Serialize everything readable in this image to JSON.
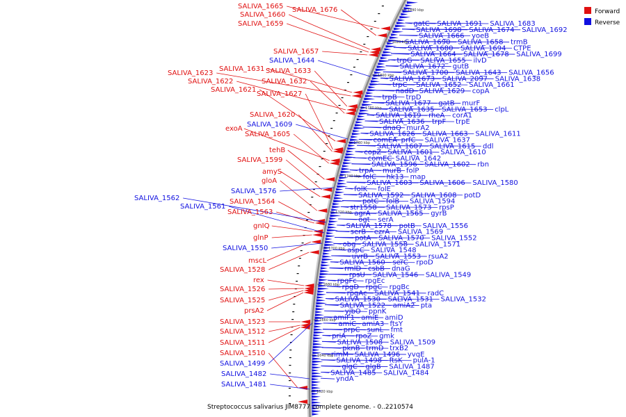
{
  "caption": "Streptococcus salivarius JIM8777 complete genome. - 0..2210574",
  "legend": [
    {
      "label": "Forward",
      "color": "#e01010"
    },
    {
      "label": "Reverse",
      "color": "#1010e0"
    }
  ],
  "colors": {
    "forward": "#e01010",
    "reverse": "#1010e0",
    "backbone": "#888888"
  },
  "ticks": [
    "1620 kbp",
    "1640 kbp",
    "1660 kbp",
    "1680 kbp",
    "1700 kbp",
    "1720 kbp",
    "1740 kbp",
    "1760 kbp",
    "1780 kbp",
    "1800 kbp",
    "1820 kbp",
    "1840 kbp"
  ],
  "forward_labels": [
    "SALIVA_1665",
    "SALIVA_1676",
    "SALIVA_1660",
    "SALIVA_1659",
    "SALIVA_1657",
    "SALIVA_1631",
    "SALIVA_1623",
    "SALIVA_1633",
    "SALIVA_1622",
    "SALIVA_1632",
    "SALIVA_1621",
    "SALIVA_1627",
    "SALIVA_1620",
    "exoA",
    "SALIVA_1605",
    "tehB",
    "SALIVA_1599",
    "amyS",
    "gloA",
    "SALIVA_1564",
    "SALIVA_1563",
    "gnIQ",
    "glnP",
    "mscL",
    "SALIVA_1528",
    "rex",
    "SALIVA_1526",
    "SALIVA_1525",
    "prsA2",
    "SALIVA_1523",
    "SALIVA_1512",
    "SALIVA_1511",
    "SALIVA_1510"
  ],
  "reverse_left_labels": [
    "SALIVA_1644",
    "SALIVA_1609",
    "SALIVA_1576",
    "SALIVA_1562",
    "SALIVA_1561",
    "SALIVA_1550",
    "SALIVA_1499",
    "SALIVA_1482",
    "SALIVA_1481"
  ],
  "reverse_right_labels": [
    "gatC",
    "SALIVA_1691",
    "SALIVA_1683",
    "SALIVA_1698",
    "SALIVA_1674",
    "SALIVA_1692",
    "SALIVA_1666",
    "yoeB",
    "SALIVA_1690",
    "SALIVA_1658",
    "trmB",
    "SALIVA_1680",
    "SALIVA_1694",
    "CTPE",
    "SALIVA_1664",
    "SALIVA_1678",
    "SALIVA_1699",
    "trpG",
    "SALIVA_1655",
    "ilvD",
    "SALIVA_1672",
    "gutB",
    "SALIVA_1700",
    "SALIVA_1643",
    "SALIVA_1656",
    "SALIVA_1673",
    "SALIVA_2097",
    "SALIVA_1638",
    "trpC",
    "SALIVA_1652",
    "SALIVA_1661",
    "nadD",
    "SALIVA_1629",
    "copA",
    "trpB",
    "trpD",
    "SALIVA_1677",
    "gatB",
    "murF",
    "SALIVA_1635",
    "SALIVA_1653",
    "clpL",
    "SALIVA_1619",
    "rheA",
    "corA1",
    "SALIVA_1636",
    "trpF",
    "trpE",
    "dnaQ",
    "murA2",
    "SALIVA_1626",
    "SALIVA_1663",
    "SALIVA_1611",
    "comEA",
    "prfC",
    "SALIVA_1637",
    "SALIVA_1607",
    "SALIVA_1615",
    "ddl",
    "copZ",
    "SALIVA_1601",
    "SALIVA_1610",
    "comEC",
    "SALIVA_1642",
    "SALIVA_1596",
    "SALIVA_1602",
    "rbn",
    "trpA",
    "murB",
    "folP",
    "folC",
    "hk13",
    "map",
    "SALIVA_1603",
    "SALIVA_1606",
    "SALIVA_1580",
    "folK",
    "folE",
    "SALIVA_1592",
    "SALIVA_1608",
    "potD",
    "potC",
    "folB",
    "SALIVA_1594",
    "str1558",
    "SALIVA_1573",
    "rpsP",
    "agrA",
    "SALIVA_1565",
    "gyrB",
    "ogt",
    "serA",
    "SALIVA_1578",
    "potB",
    "SALIVA_1556",
    "serB",
    "ezrA",
    "SALIVA_1569",
    "potA",
    "SALIVA_1570",
    "SALIVA_1552",
    "obg",
    "SALIVA_1558",
    "SALIVA_1571",
    "aspC",
    "SALIVA_1548",
    "uvrB",
    "SALIVA_1553",
    "rsuA2",
    "SALIVA_1560",
    "serC",
    "rpoD",
    "rmlD",
    "csbB",
    "dnaG",
    "rpsU",
    "SALIVA_1546",
    "SALIVA_1549",
    "rpgFc",
    "rpgEc",
    "rpgD",
    "rpgC",
    "rpgBc",
    "rpgAc",
    "SALIVA_1541",
    "radC",
    "SALIVA_1530",
    "SALIVA_1531",
    "SALIVA_1532",
    "SALIVA_1522",
    "amiA2",
    "pta",
    "yjbO",
    "ppnK",
    "amiF1",
    "amiE",
    "amiD",
    "amiC",
    "amiA3",
    "ftsY",
    "prpC",
    "sunL",
    "fmt",
    "priA",
    "rpoZ",
    "gmk",
    "SALIVA_1508",
    "SALIVA_1509",
    "pknB",
    "trmD",
    "trxB2",
    "rimM",
    "SALIVA_1496",
    "yvqE",
    "SALIVA_1498",
    "ftsK",
    "pulA-1",
    "glgC",
    "glgB",
    "SALIVA_1487",
    "SALIVA_1485",
    "SALIVA_1484",
    "yndA"
  ]
}
